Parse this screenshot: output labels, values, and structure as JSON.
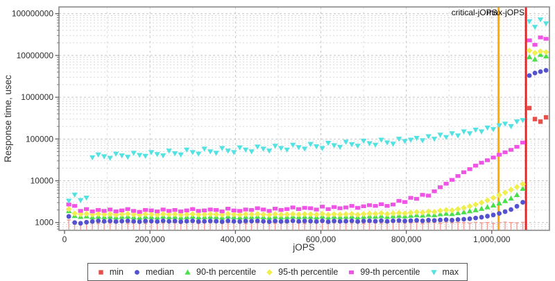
{
  "chart_data": {
    "type": "scatter",
    "title": "",
    "xlabel": "jOPS",
    "ylabel": "Response time, usec",
    "y_scale": "log",
    "grid": true,
    "legend_position": "bottom",
    "x_ticks": [
      "0",
      "200,000",
      "400,000",
      "600,000",
      "800,000",
      "1,000,000"
    ],
    "x_tick_values": [
      0,
      200000,
      400000,
      600000,
      800000,
      1000000
    ],
    "y_ticks": [
      "1000",
      "10000",
      "100000",
      "1000000",
      "10000000",
      "100000000"
    ],
    "y_tick_values": [
      1000,
      10000,
      100000,
      1000000,
      10000000,
      100000000
    ],
    "x_range": [
      -13000,
      1135000
    ],
    "y_range": [
      650,
      145000000
    ],
    "reference_lines": [
      {
        "label": "critical-jOPS",
        "x": 1016000,
        "color": "#ffab00"
      },
      {
        "label": "max-jOPS",
        "x": 1080000,
        "color": "#ee2222"
      }
    ],
    "min_stem_color": "#f29d96",
    "jops": [
      10000,
      23800,
      37600,
      51400,
      65200,
      79000,
      92800,
      106600,
      120400,
      134200,
      148000,
      161800,
      175600,
      189400,
      203200,
      217000,
      230800,
      244600,
      258400,
      272200,
      286000,
      299800,
      313600,
      327400,
      341200,
      355000,
      368800,
      382600,
      396400,
      410200,
      424000,
      437800,
      451600,
      465400,
      479200,
      493000,
      506800,
      520600,
      534400,
      548200,
      562000,
      575800,
      589600,
      603400,
      617200,
      631000,
      644800,
      658600,
      672400,
      686200,
      700000,
      713800,
      727600,
      741400,
      755200,
      769000,
      782800,
      796600,
      810400,
      824200,
      838000,
      851800,
      865600,
      879400,
      893200,
      907000,
      920800,
      934600,
      948400,
      962200,
      976000,
      989800,
      1003600,
      1017400,
      1031200,
      1045000,
      1058800,
      1072600,
      1088000,
      1101000,
      1114000,
      1127000
    ],
    "series": [
      {
        "name": "min",
        "marker": "square",
        "color": "#e5504a",
        "values": [
          1150,
          990,
          960,
          1010,
          980,
          950,
          1000,
          970,
          990,
          1020,
          960,
          980,
          1010,
          950,
          990,
          1000,
          970,
          1020,
          980,
          960,
          1000,
          990,
          950,
          1010,
          980,
          1000,
          960,
          990,
          1020,
          970,
          950,
          1000,
          980,
          1010,
          990,
          960,
          1000,
          970,
          1020,
          980,
          950,
          990,
          1010,
          1000,
          960,
          980,
          1000,
          990,
          970,
          1010,
          950,
          1000,
          980,
          960,
          990,
          1020,
          1000,
          970,
          980,
          1010,
          950,
          990,
          1000,
          960,
          1020,
          980,
          1000,
          990,
          970,
          1010,
          980,
          1000,
          950,
          990,
          1020,
          1000,
          980,
          1010,
          550000,
          300000,
          260000,
          330000
        ]
      },
      {
        "name": "median",
        "marker": "circle",
        "color": "#5452cf",
        "values": [
          1400,
          1000,
          960,
          1020,
          1060,
          1100,
          1070,
          1090,
          1060,
          1080,
          1100,
          1070,
          1050,
          1090,
          1080,
          1060,
          1100,
          1070,
          1090,
          1050,
          1080,
          1100,
          1060,
          1070,
          1090,
          1080,
          1050,
          1100,
          1070,
          1060,
          1090,
          1080,
          1100,
          1070,
          1050,
          1090,
          1060,
          1080,
          1100,
          1070,
          1090,
          1080,
          1060,
          1100,
          1050,
          1090,
          1070,
          1080,
          1100,
          1060,
          1090,
          1100,
          1080,
          1110,
          1070,
          1100,
          1120,
          1090,
          1110,
          1130,
          1100,
          1140,
          1120,
          1150,
          1170,
          1140,
          1180,
          1200,
          1230,
          1280,
          1340,
          1420,
          1520,
          1650,
          1820,
          2050,
          2450,
          3050,
          3300000,
          3800000,
          4100000,
          4400000
        ]
      },
      {
        "name": "90-th percentile",
        "marker": "triangle-up",
        "color": "#4be04b",
        "values": [
          1900,
          1450,
          1380,
          1420,
          1350,
          1400,
          1360,
          1390,
          1340,
          1380,
          1410,
          1350,
          1330,
          1390,
          1370,
          1340,
          1400,
          1360,
          1380,
          1330,
          1370,
          1400,
          1350,
          1360,
          1390,
          1370,
          1330,
          1410,
          1360,
          1340,
          1380,
          1370,
          1400,
          1360,
          1330,
          1390,
          1350,
          1370,
          1400,
          1360,
          1390,
          1380,
          1350,
          1410,
          1340,
          1390,
          1360,
          1380,
          1410,
          1350,
          1390,
          1420,
          1400,
          1440,
          1380,
          1430,
          1460,
          1420,
          1470,
          1510,
          1480,
          1550,
          1520,
          1600,
          1650,
          1620,
          1700,
          1780,
          1880,
          2000,
          2150,
          2350,
          2600,
          2900,
          3300,
          3800,
          4600,
          6500,
          9200000,
          8100000,
          10500000,
          9600000
        ]
      },
      {
        "name": "95-th percentile",
        "marker": "diamond",
        "color": "#efef52",
        "values": [
          2100,
          1650,
          1580,
          1620,
          1550,
          1600,
          1560,
          1590,
          1540,
          1580,
          1610,
          1550,
          1530,
          1590,
          1570,
          1540,
          1600,
          1560,
          1580,
          1530,
          1570,
          1600,
          1550,
          1560,
          1590,
          1570,
          1530,
          1610,
          1560,
          1540,
          1580,
          1570,
          1600,
          1560,
          1530,
          1590,
          1550,
          1570,
          1600,
          1560,
          1590,
          1580,
          1550,
          1610,
          1540,
          1590,
          1560,
          1580,
          1610,
          1550,
          1600,
          1640,
          1620,
          1680,
          1600,
          1660,
          1700,
          1650,
          1720,
          1780,
          1740,
          1840,
          1800,
          1920,
          2000,
          1960,
          2100,
          2250,
          2450,
          2700,
          3000,
          3400,
          3900,
          4500,
          5200,
          6100,
          7100,
          8300,
          13000000,
          11500000,
          12500000,
          12000000
        ]
      },
      {
        "name": "99-th percentile",
        "marker": "rect",
        "color": "#f054e4",
        "values": [
          2700,
          2500,
          1900,
          2100,
          1850,
          2000,
          1900,
          2050,
          1850,
          1950,
          2100,
          1900,
          1800,
          2000,
          1950,
          1850,
          2050,
          1900,
          2000,
          1850,
          1950,
          2100,
          1900,
          1950,
          2050,
          2000,
          1850,
          2150,
          1950,
          1900,
          2050,
          2000,
          2200,
          2050,
          1900,
          2150,
          2000,
          2100,
          2300,
          2100,
          2250,
          2200,
          2050,
          2400,
          2100,
          2350,
          2200,
          2300,
          2500,
          2250,
          2450,
          2600,
          2500,
          2750,
          2500,
          2700,
          3300,
          3100,
          3900,
          3700,
          4600,
          4400,
          5600,
          7000,
          8500,
          10500,
          13000,
          16000,
          19000,
          23000,
          27000,
          31000,
          36000,
          42000,
          48000,
          55000,
          65000,
          82000,
          23000000,
          18000000,
          27000000,
          25000000
        ]
      },
      {
        "name": "max",
        "marker": "triangle-down",
        "color": "#52e2e2",
        "values": [
          3300,
          4600,
          3400,
          3900,
          36000,
          42000,
          38000,
          35000,
          44000,
          40000,
          37000,
          46000,
          41000,
          39000,
          48000,
          43000,
          40000,
          52000,
          45000,
          42000,
          55000,
          48000,
          44000,
          58000,
          50000,
          46000,
          60000,
          52000,
          48000,
          62000,
          55000,
          50000,
          65000,
          58000,
          52000,
          68000,
          60000,
          55000,
          72000,
          63000,
          58000,
          75000,
          66000,
          60000,
          80000,
          70000,
          64000,
          85000,
          74000,
          68000,
          90000,
          78000,
          72000,
          95000,
          82000,
          76000,
          100000,
          88000,
          95000,
          105000,
          92000,
          115000,
          100000,
          125000,
          110000,
          135000,
          120000,
          150000,
          135000,
          165000,
          150000,
          185000,
          170000,
          210000,
          230000,
          200000,
          260000,
          280000,
          65000000,
          48000000,
          72000000,
          58000000
        ]
      }
    ]
  },
  "legend": {
    "items": [
      "min",
      "median",
      "90-th percentile",
      "95-th percentile",
      "99-th percentile",
      "max"
    ]
  }
}
